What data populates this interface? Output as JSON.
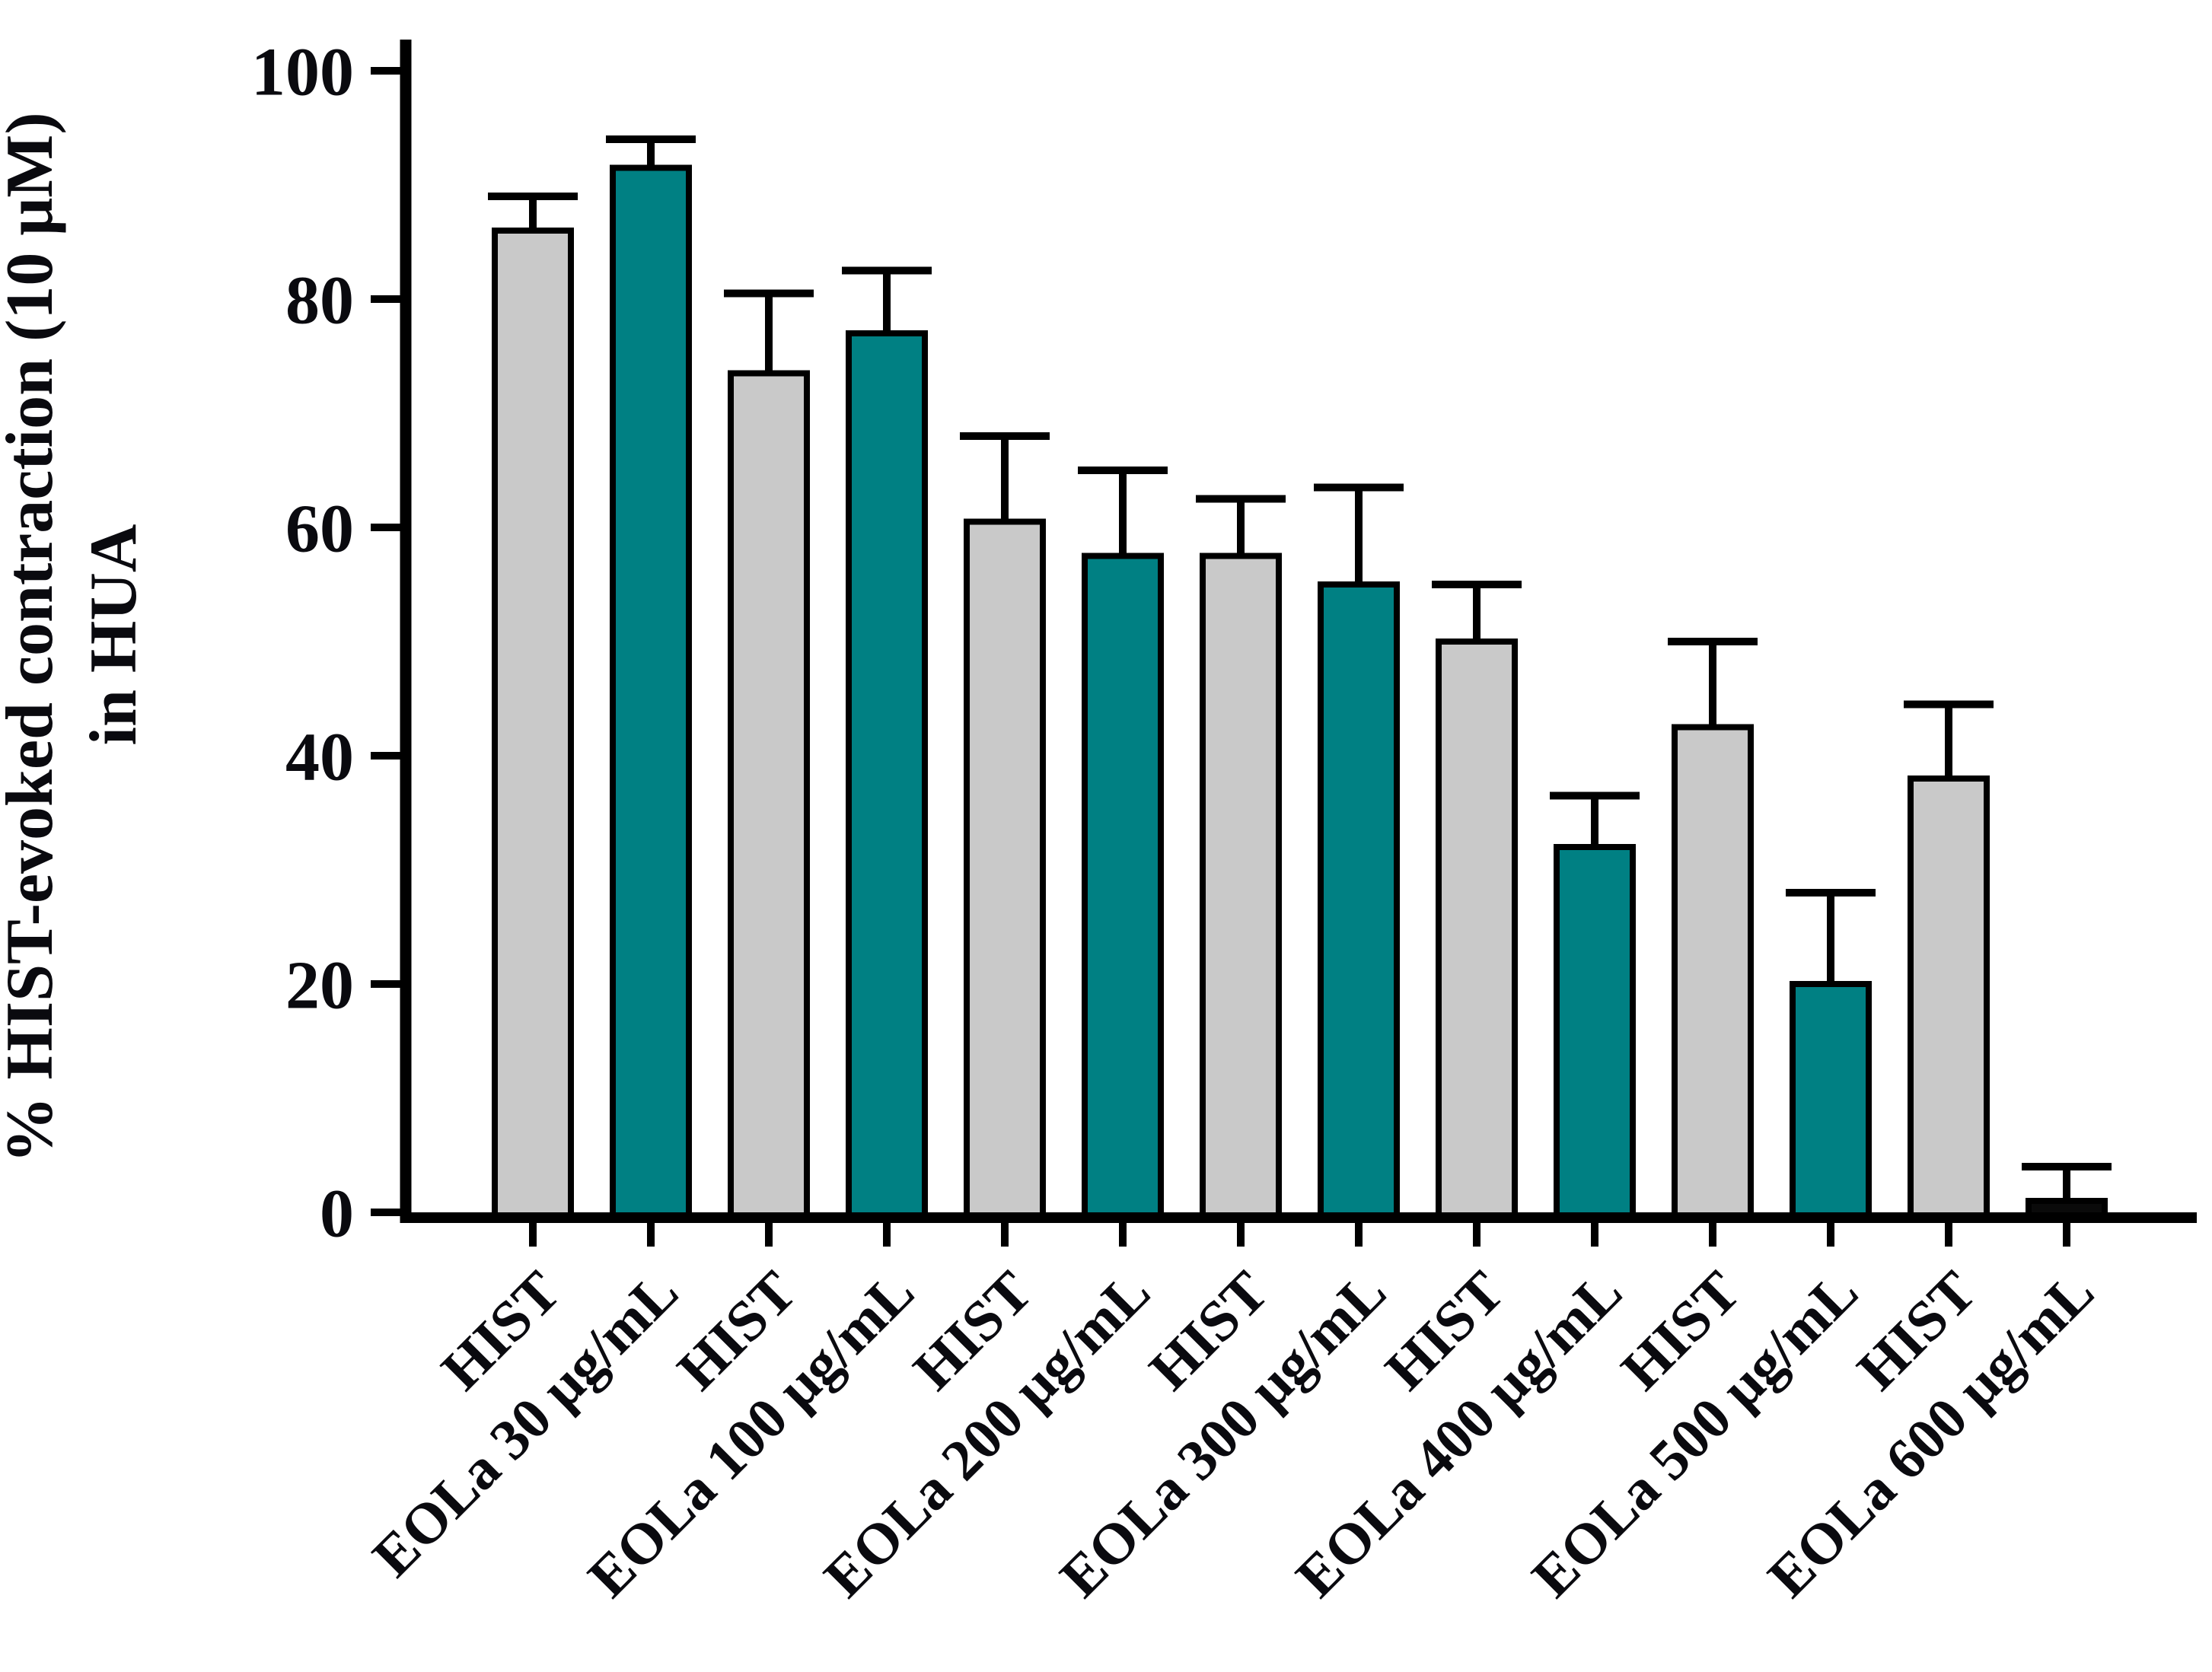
{
  "figure": {
    "ylabel_line1": "% HIST-evoked contraction (10 μM)",
    "ylabel_line2": "in HUA"
  },
  "chart_data": {
    "type": "bar",
    "title": "",
    "xlabel": "",
    "ylabel": "% HIST-evoked contraction (10 μM) in HUA",
    "ylim": [
      0,
      100
    ],
    "yticks": [
      0,
      20,
      40,
      60,
      80,
      100
    ],
    "yticklabels": [
      "0",
      "20",
      "40",
      "60",
      "80",
      "100"
    ],
    "grid": false,
    "legend": false,
    "error_bars": "upper caps only",
    "categories": [
      "HIST",
      "EOLa 30 μg/mL",
      "HIST",
      "EOLa 100 μg/mL",
      "HIST",
      "EOLa 200 μg/mL",
      "HIST",
      "EOLa 300 μg/mL",
      "HIST",
      "EOLa 400 μg/mL",
      "HIST",
      "EOLa 500 μg/mL",
      "HIST",
      "EOLa 600 μg/mL"
    ],
    "values": [
      86,
      91.5,
      73.5,
      77,
      60.5,
      57.5,
      57.5,
      55,
      50,
      32,
      42.5,
      20,
      38,
      1
    ],
    "errors_upper": [
      3,
      2.5,
      7,
      5.5,
      7.5,
      7.5,
      5,
      8.5,
      5,
      4.5,
      7.5,
      8,
      6.5,
      3
    ],
    "bar_color_keys": [
      "hist",
      "eola",
      "hist",
      "eola",
      "hist",
      "eola",
      "hist",
      "eola",
      "hist",
      "eola",
      "hist",
      "eola",
      "hist",
      "eola600"
    ],
    "palette": {
      "hist": "#c9c9c9",
      "eola": "#008083",
      "eola600": "#0a0a0a",
      "outline": "#000000",
      "axis": "#000000"
    }
  }
}
